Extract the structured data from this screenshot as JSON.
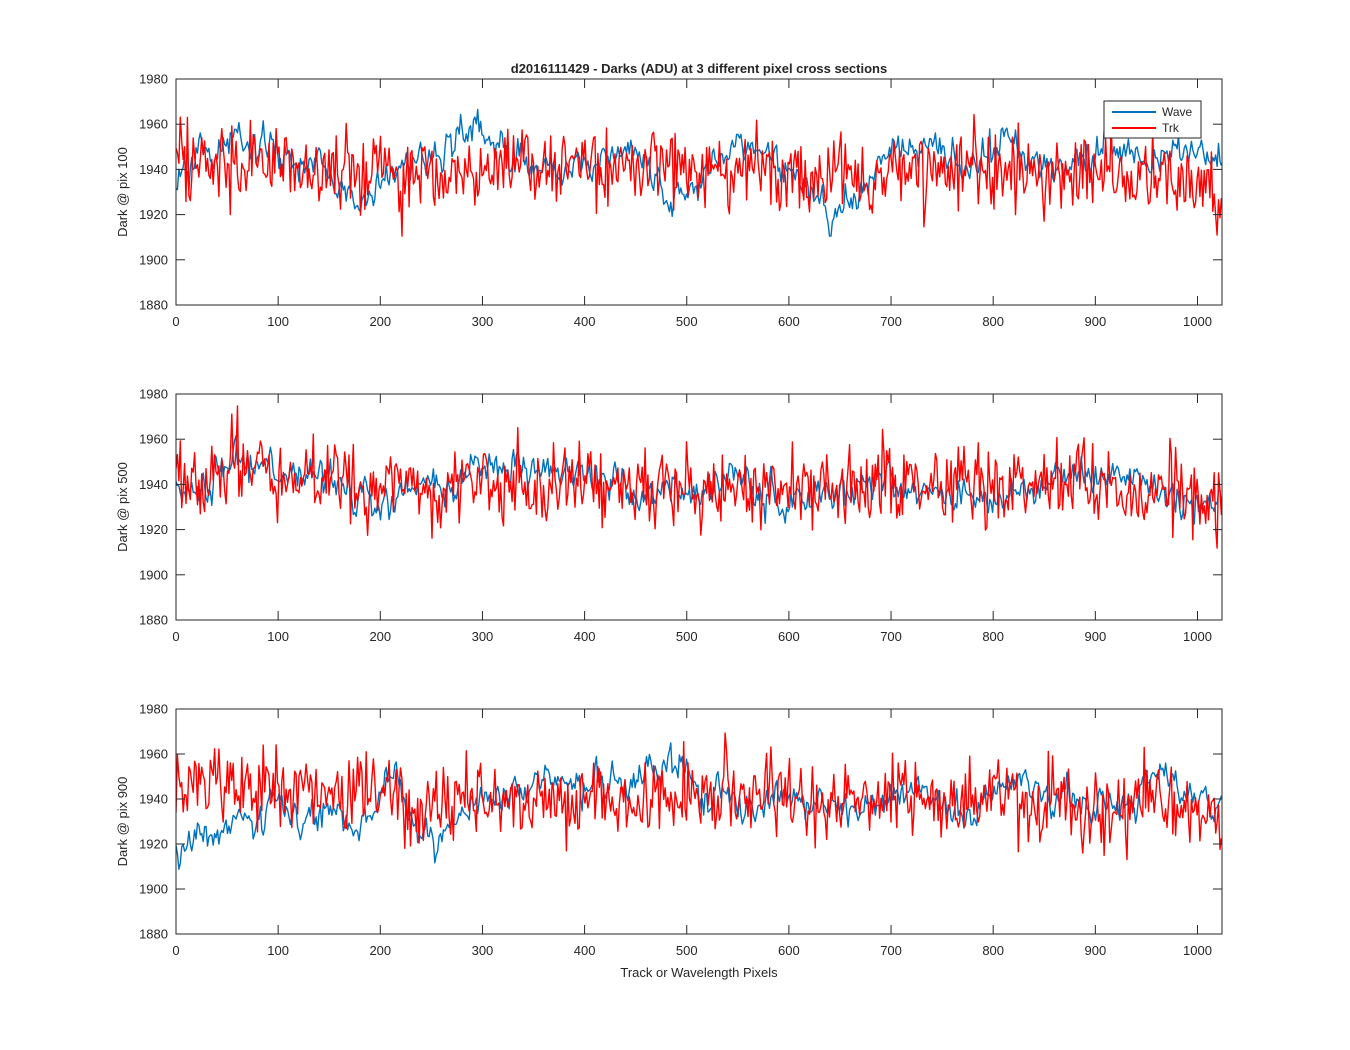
{
  "figure": {
    "title": "d2016111429 - Darks (ADU) at 3 different pixel cross sections",
    "xlabel": "Track or Wavelength Pixels"
  },
  "legend": {
    "placement": "top-right of first panel",
    "items": [
      {
        "label": "Wave",
        "color": "#0072BD"
      },
      {
        "label": "Trk",
        "color": "#FF0000"
      }
    ]
  },
  "chart_data": [
    {
      "type": "line",
      "ylabel": "Dark @ pix 100",
      "xlim": [
        0,
        1024
      ],
      "ylim": [
        1880,
        1980
      ],
      "xticks": [
        0,
        100,
        200,
        300,
        400,
        500,
        600,
        700,
        800,
        900,
        1000
      ],
      "yticks": [
        1880,
        1900,
        1920,
        1940,
        1960,
        1980
      ],
      "grid": false,
      "series": [
        {
          "name": "Wave",
          "color": "#0072BD",
          "x": [
            0,
            20,
            40,
            60,
            80,
            100,
            120,
            140,
            160,
            180,
            200,
            220,
            240,
            260,
            280,
            300,
            320,
            340,
            360,
            380,
            400,
            420,
            440,
            460,
            480,
            500,
            520,
            540,
            560,
            580,
            600,
            620,
            640,
            660,
            680,
            700,
            720,
            740,
            760,
            780,
            800,
            820,
            840,
            860,
            880,
            900,
            920,
            940,
            960,
            980,
            1000,
            1024
          ],
          "y": [
            1935,
            1943,
            1948,
            1952,
            1950,
            1946,
            1944,
            1941,
            1932,
            1928,
            1934,
            1940,
            1944,
            1948,
            1958,
            1955,
            1946,
            1943,
            1941,
            1940,
            1942,
            1946,
            1950,
            1946,
            1926,
            1928,
            1945,
            1950,
            1949,
            1944,
            1940,
            1932,
            1915,
            1928,
            1934,
            1950,
            1946,
            1947,
            1946,
            1943,
            1952,
            1950,
            1944,
            1941,
            1940,
            1950,
            1951,
            1946,
            1944,
            1950,
            1945,
            1946
          ]
        },
        {
          "name": "Trk",
          "color": "#FF0000",
          "x": [
            0,
            20,
            40,
            60,
            80,
            100,
            120,
            140,
            160,
            180,
            200,
            220,
            240,
            260,
            280,
            300,
            320,
            340,
            360,
            380,
            400,
            420,
            440,
            460,
            480,
            500,
            520,
            540,
            560,
            580,
            600,
            620,
            640,
            660,
            680,
            700,
            720,
            740,
            760,
            780,
            800,
            820,
            840,
            860,
            880,
            900,
            920,
            940,
            960,
            980,
            1000,
            1024
          ],
          "y": [
            1942,
            1945,
            1944,
            1941,
            1943,
            1944,
            1940,
            1939,
            1941,
            1938,
            1942,
            1936,
            1940,
            1943,
            1938,
            1940,
            1944,
            1941,
            1939,
            1942,
            1943,
            1940,
            1938,
            1941,
            1940,
            1939,
            1942,
            1936,
            1941,
            1940,
            1938,
            1937,
            1939,
            1940,
            1935,
            1941,
            1944,
            1942,
            1940,
            1943,
            1941,
            1939,
            1940,
            1942,
            1938,
            1939,
            1937,
            1935,
            1938,
            1934,
            1936,
            1925
          ]
        }
      ]
    },
    {
      "type": "line",
      "ylabel": "Dark @ pix 500",
      "xlim": [
        0,
        1024
      ],
      "ylim": [
        1880,
        1980
      ],
      "xticks": [
        0,
        100,
        200,
        300,
        400,
        500,
        600,
        700,
        800,
        900,
        1000
      ],
      "yticks": [
        1880,
        1900,
        1920,
        1940,
        1960,
        1980
      ],
      "grid": false,
      "series": [
        {
          "name": "Wave",
          "color": "#0072BD",
          "x": [
            0,
            20,
            40,
            60,
            80,
            100,
            120,
            140,
            160,
            180,
            200,
            220,
            240,
            260,
            280,
            300,
            320,
            340,
            360,
            380,
            400,
            420,
            440,
            460,
            480,
            500,
            520,
            540,
            560,
            580,
            600,
            620,
            640,
            660,
            680,
            700,
            720,
            740,
            760,
            780,
            800,
            820,
            840,
            860,
            880,
            900,
            920,
            940,
            960,
            980,
            1000,
            1024
          ],
          "y": [
            1940,
            1935,
            1942,
            1950,
            1948,
            1946,
            1944,
            1942,
            1940,
            1935,
            1930,
            1936,
            1938,
            1936,
            1940,
            1946,
            1950,
            1948,
            1944,
            1946,
            1946,
            1944,
            1938,
            1934,
            1936,
            1938,
            1936,
            1940,
            1938,
            1933,
            1928,
            1934,
            1938,
            1936,
            1938,
            1940,
            1938,
            1936,
            1930,
            1934,
            1936,
            1938,
            1940,
            1942,
            1944,
            1942,
            1940,
            1945,
            1936,
            1934,
            1932,
            1932
          ]
        },
        {
          "name": "Trk",
          "color": "#FF0000",
          "x": [
            0,
            20,
            40,
            60,
            80,
            100,
            120,
            140,
            160,
            180,
            200,
            220,
            240,
            260,
            280,
            300,
            320,
            340,
            360,
            380,
            400,
            420,
            440,
            460,
            480,
            500,
            520,
            540,
            560,
            580,
            600,
            620,
            640,
            660,
            680,
            700,
            720,
            740,
            760,
            780,
            800,
            820,
            840,
            860,
            880,
            900,
            920,
            940,
            960,
            980,
            1000,
            1024
          ],
          "y": [
            1944,
            1940,
            1946,
            1950,
            1948,
            1944,
            1942,
            1946,
            1944,
            1940,
            1938,
            1942,
            1940,
            1938,
            1940,
            1942,
            1940,
            1938,
            1940,
            1942,
            1938,
            1940,
            1936,
            1940,
            1938,
            1936,
            1940,
            1938,
            1942,
            1940,
            1936,
            1940,
            1938,
            1936,
            1940,
            1942,
            1940,
            1938,
            1942,
            1940,
            1940,
            1942,
            1944,
            1942,
            1946,
            1940,
            1938,
            1936,
            1938,
            1936,
            1934,
            1932
          ]
        }
      ]
    },
    {
      "type": "line",
      "ylabel": "Dark @ pix 900",
      "xlim": [
        0,
        1024
      ],
      "ylim": [
        1880,
        1980
      ],
      "xticks": [
        0,
        100,
        200,
        300,
        400,
        500,
        600,
        700,
        800,
        900,
        1000
      ],
      "yticks": [
        1880,
        1900,
        1920,
        1940,
        1960,
        1980
      ],
      "grid": false,
      "series": [
        {
          "name": "Wave",
          "color": "#0072BD",
          "x": [
            0,
            20,
            40,
            60,
            80,
            100,
            120,
            140,
            160,
            180,
            200,
            210,
            220,
            240,
            260,
            280,
            300,
            320,
            340,
            360,
            380,
            400,
            420,
            440,
            460,
            480,
            500,
            520,
            540,
            560,
            580,
            600,
            620,
            640,
            660,
            680,
            700,
            720,
            740,
            760,
            780,
            800,
            820,
            840,
            860,
            880,
            900,
            920,
            940,
            960,
            980,
            1000,
            1024
          ],
          "y": [
            1915,
            1922,
            1925,
            1930,
            1934,
            1936,
            1932,
            1935,
            1932,
            1926,
            1940,
            1960,
            1942,
            1925,
            1920,
            1932,
            1938,
            1940,
            1942,
            1944,
            1946,
            1946,
            1944,
            1948,
            1950,
            1954,
            1950,
            1945,
            1940,
            1936,
            1942,
            1940,
            1938,
            1936,
            1934,
            1938,
            1940,
            1946,
            1942,
            1936,
            1930,
            1944,
            1948,
            1942,
            1940,
            1938,
            1936,
            1938,
            1940,
            1950,
            1946,
            1938,
            1942
          ]
        },
        {
          "name": "Trk",
          "color": "#FF0000",
          "x": [
            0,
            20,
            40,
            60,
            80,
            100,
            120,
            140,
            160,
            180,
            200,
            220,
            240,
            260,
            280,
            300,
            320,
            340,
            360,
            380,
            400,
            420,
            440,
            460,
            480,
            500,
            520,
            540,
            560,
            580,
            600,
            620,
            640,
            660,
            680,
            700,
            720,
            740,
            760,
            780,
            800,
            820,
            840,
            860,
            880,
            900,
            920,
            940,
            960,
            980,
            1000,
            1024
          ],
          "y": [
            1945,
            1946,
            1948,
            1945,
            1944,
            1946,
            1944,
            1942,
            1948,
            1945,
            1944,
            1940,
            1938,
            1936,
            1940,
            1942,
            1940,
            1938,
            1942,
            1940,
            1940,
            1942,
            1940,
            1938,
            1940,
            1942,
            1938,
            1942,
            1940,
            1944,
            1940,
            1938,
            1940,
            1942,
            1936,
            1940,
            1942,
            1940,
            1938,
            1940,
            1942,
            1940,
            1936,
            1938,
            1940,
            1932,
            1934,
            1936,
            1940,
            1938,
            1936,
            1930
          ]
        }
      ]
    }
  ]
}
